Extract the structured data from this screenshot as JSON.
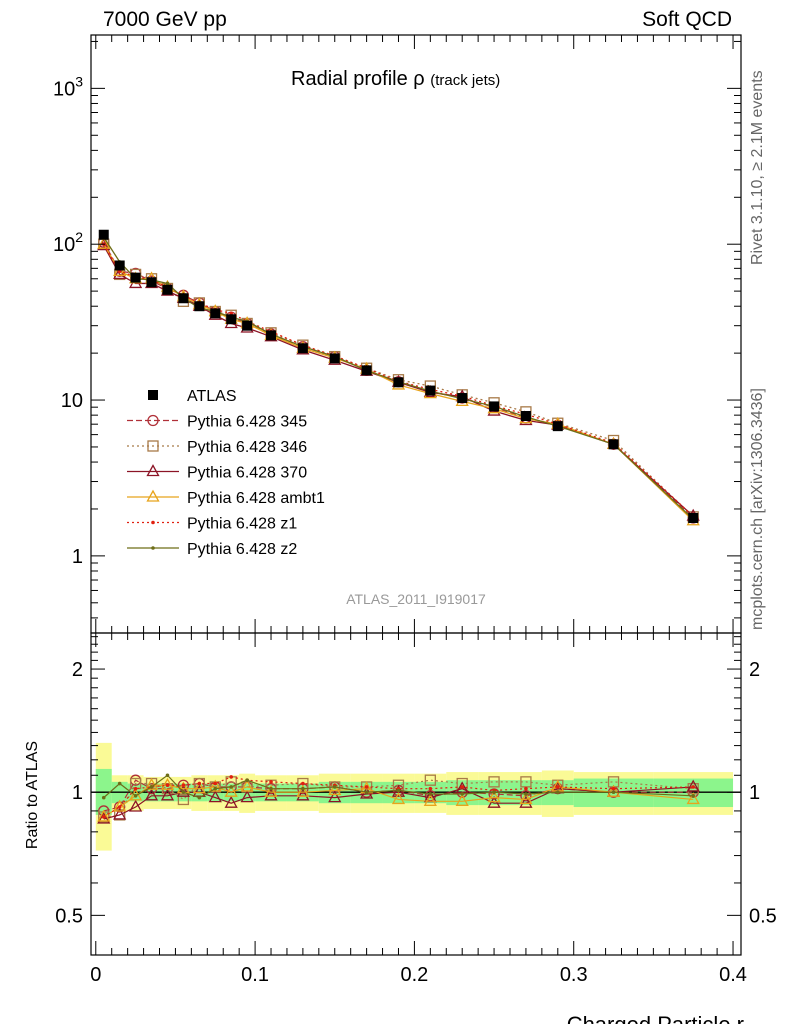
{
  "header": {
    "left": "7000 GeV pp",
    "right": "Soft QCD"
  },
  "side": {
    "rivet": "Rivet 3.1.10, ≥ 2.1M events",
    "mcplots": "mcplots.cern.ch [arXiv:1306.3436]"
  },
  "plot_title": {
    "main": "Radial profile",
    "rho": "ρ",
    "sub": "(track jets)"
  },
  "analysis_tag": "ATLAS_2011_I919017",
  "colors": {
    "ATLAS": "#000000",
    "Pythia 6.428 345": "#b03038",
    "Pythia 6.428 346": "#a87a48",
    "Pythia 6.428 370": "#8c1426",
    "Pythia 6.428 ambt1": "#e8a41c",
    "Pythia 6.428 z1": "#e02010",
    "Pythia 6.428 z2": "#6e6e18",
    "band_inner": "#8cf58c",
    "band_outer": "#fafa96"
  },
  "chart_data": [
    {
      "type": "line",
      "panel": "main",
      "title": "Radial profile ρ (track jets)",
      "xlabel": "",
      "ylabel": "",
      "yscale": "log",
      "xlim": [
        -0.003,
        0.405
      ],
      "ylim": [
        0.32,
        2200
      ],
      "y_tick_labels": [
        "1",
        "10",
        "10^2",
        "10^3"
      ],
      "legend_position": "lower-left",
      "x": [
        0.005,
        0.015,
        0.025,
        0.035,
        0.045,
        0.055,
        0.065,
        0.075,
        0.085,
        0.095,
        0.11,
        0.13,
        0.15,
        0.17,
        0.19,
        0.21,
        0.23,
        0.25,
        0.27,
        0.29,
        0.325,
        0.375
      ],
      "series": [
        {
          "name": "ATLAS",
          "marker": "square-filled",
          "line": "none",
          "values": [
            115,
            73,
            61,
            57,
            51,
            45,
            40,
            36,
            33,
            30,
            26,
            21.5,
            18.5,
            15.5,
            13,
            11.5,
            10.3,
            9.1,
            7.9,
            6.8,
            5.2,
            1.75
          ]
        },
        {
          "name": "Pythia 6.428 345",
          "marker": "circle-open",
          "line": "dashed",
          "values": [
            103,
            67,
            65,
            58,
            52,
            47,
            42,
            37,
            34,
            31,
            26.5,
            22,
            19,
            15.5,
            13.1,
            11.3,
            10.3,
            9.0,
            7.7,
            6.9,
            5.2,
            1.75
          ]
        },
        {
          "name": "Pythia 6.428 346",
          "marker": "square-open",
          "line": "dotted",
          "values": [
            100,
            64,
            64,
            60,
            52,
            43,
            42,
            37,
            35,
            31,
            27,
            22.5,
            19,
            16,
            13.5,
            12.3,
            10.8,
            9.6,
            8.4,
            7.1,
            5.5,
            1.78
          ]
        },
        {
          "name": "Pythia 6.428 370",
          "marker": "triangle-open",
          "line": "solid",
          "values": [
            98,
            64,
            56,
            56,
            50,
            45,
            40,
            35,
            31,
            29,
            25.5,
            21,
            18,
            15.3,
            13,
            11.2,
            10.5,
            8.5,
            7.4,
            6.9,
            5.2,
            1.8
          ]
        },
        {
          "name": "Pythia 6.428 ambt1",
          "marker": "triangle-open",
          "line": "solid",
          "values": [
            100,
            67,
            60,
            60,
            53,
            46,
            41,
            37,
            33,
            31,
            26,
            21.5,
            18.6,
            15.8,
            12.5,
            11,
            9.8,
            8.8,
            7.6,
            7.0,
            5.2,
            1.68
          ]
        },
        {
          "name": "Pythia 6.428 z1",
          "marker": "dot",
          "line": "dotted",
          "values": [
            100,
            67,
            62,
            59,
            53,
            47,
            42,
            38,
            36,
            32,
            27.5,
            22.5,
            19.2,
            16,
            13.2,
            11.7,
            10.6,
            9.2,
            8.1,
            7.0,
            5.3,
            1.8
          ]
        },
        {
          "name": "Pythia 6.428 z2",
          "marker": "dot",
          "line": "solid",
          "values": [
            111,
            77,
            60,
            59,
            56,
            45,
            39,
            37,
            34,
            32,
            26.5,
            22,
            19,
            15.5,
            13.1,
            11.4,
            10.2,
            9.1,
            7.8,
            6.8,
            5.2,
            1.72
          ]
        }
      ]
    },
    {
      "type": "line",
      "panel": "ratio",
      "xlabel": "Charged Particle r",
      "ylabel": "Ratio to ATLAS",
      "yscale": "log",
      "xlim": [
        -0.003,
        0.405
      ],
      "ylim": [
        0.4,
        2.45
      ],
      "y_tick_labels": [
        "0.5",
        "1",
        "2"
      ],
      "x_tick_labels": [
        "0",
        "0.1",
        "0.2",
        "0.3",
        "0.4"
      ],
      "band_x_edges": [
        0,
        0.01,
        0.02,
        0.03,
        0.04,
        0.05,
        0.06,
        0.07,
        0.08,
        0.09,
        0.1,
        0.12,
        0.14,
        0.16,
        0.18,
        0.2,
        0.22,
        0.24,
        0.26,
        0.28,
        0.3,
        0.35,
        0.4
      ],
      "band_inner": [
        [
          0.88,
          1.14
        ],
        [
          0.94,
          1.06
        ],
        [
          0.95,
          1.05
        ],
        [
          0.95,
          1.05
        ],
        [
          0.95,
          1.05
        ],
        [
          0.95,
          1.05
        ],
        [
          0.95,
          1.05
        ],
        [
          0.95,
          1.05
        ],
        [
          0.95,
          1.05
        ],
        [
          0.95,
          1.05
        ],
        [
          0.95,
          1.05
        ],
        [
          0.95,
          1.05
        ],
        [
          0.94,
          1.06
        ],
        [
          0.94,
          1.06
        ],
        [
          0.94,
          1.06
        ],
        [
          0.94,
          1.06
        ],
        [
          0.93,
          1.07
        ],
        [
          0.93,
          1.07
        ],
        [
          0.93,
          1.07
        ],
        [
          0.93,
          1.07
        ],
        [
          0.92,
          1.08
        ],
        [
          0.92,
          1.08
        ]
      ],
      "band_outer": [
        [
          0.72,
          1.32
        ],
        [
          0.9,
          1.1
        ],
        [
          0.9,
          1.1
        ],
        [
          0.91,
          1.09
        ],
        [
          0.91,
          1.09
        ],
        [
          0.91,
          1.09
        ],
        [
          0.9,
          1.1
        ],
        [
          0.9,
          1.1
        ],
        [
          0.9,
          1.1
        ],
        [
          0.89,
          1.11
        ],
        [
          0.9,
          1.1
        ],
        [
          0.9,
          1.1
        ],
        [
          0.89,
          1.11
        ],
        [
          0.89,
          1.11
        ],
        [
          0.89,
          1.11
        ],
        [
          0.89,
          1.11
        ],
        [
          0.88,
          1.12
        ],
        [
          0.88,
          1.12
        ],
        [
          0.88,
          1.12
        ],
        [
          0.87,
          1.13
        ],
        [
          0.88,
          1.12
        ],
        [
          0.88,
          1.12
        ]
      ],
      "x": [
        0.005,
        0.015,
        0.025,
        0.035,
        0.045,
        0.055,
        0.065,
        0.075,
        0.085,
        0.095,
        0.11,
        0.13,
        0.15,
        0.17,
        0.19,
        0.21,
        0.23,
        0.25,
        0.27,
        0.29,
        0.325,
        0.375
      ],
      "series": [
        {
          "name": "Pythia 6.428 345",
          "values": [
            0.9,
            0.92,
            1.07,
            1.02,
            1.02,
            1.04,
            1.05,
            1.03,
            1.03,
            1.03,
            1.02,
            1.02,
            1.03,
            1.0,
            1.01,
            0.98,
            1.0,
            0.99,
            0.98,
            1.02,
            1.0,
            1.0
          ]
        },
        {
          "name": "Pythia 6.428 346",
          "values": [
            0.87,
            0.88,
            1.05,
            1.05,
            1.02,
            0.96,
            1.05,
            1.03,
            1.06,
            1.03,
            1.04,
            1.05,
            1.03,
            1.03,
            1.04,
            1.07,
            1.05,
            1.06,
            1.06,
            1.04,
            1.06,
            1.02
          ]
        },
        {
          "name": "Pythia 6.428 370",
          "values": [
            0.86,
            0.88,
            0.92,
            0.98,
            0.98,
            1.0,
            1.0,
            0.97,
            0.94,
            0.97,
            0.98,
            0.98,
            0.97,
            0.99,
            1.0,
            0.97,
            1.02,
            0.94,
            0.94,
            1.02,
            1.0,
            1.03
          ]
        },
        {
          "name": "Pythia 6.428 ambt1",
          "values": [
            0.87,
            0.92,
            0.98,
            1.04,
            1.04,
            1.02,
            1.02,
            1.03,
            1.0,
            1.03,
            1.0,
            1.0,
            1.01,
            1.02,
            0.96,
            0.95,
            0.95,
            0.97,
            0.96,
            1.03,
            1.0,
            0.96
          ]
        },
        {
          "name": "Pythia 6.428 z1",
          "values": [
            0.87,
            0.92,
            1.02,
            1.03,
            1.04,
            1.04,
            1.05,
            1.05,
            1.09,
            1.07,
            1.06,
            1.05,
            1.04,
            1.03,
            1.02,
            1.02,
            1.03,
            1.01,
            1.02,
            1.03,
            1.02,
            1.03
          ]
        },
        {
          "name": "Pythia 6.428 z2",
          "values": [
            0.97,
            1.05,
            0.98,
            1.03,
            1.1,
            1.0,
            0.97,
            1.02,
            1.03,
            1.07,
            1.02,
            1.02,
            1.03,
            1.0,
            1.01,
            0.99,
            0.99,
            1.0,
            0.99,
            1.0,
            1.0,
            0.98
          ]
        }
      ]
    }
  ]
}
